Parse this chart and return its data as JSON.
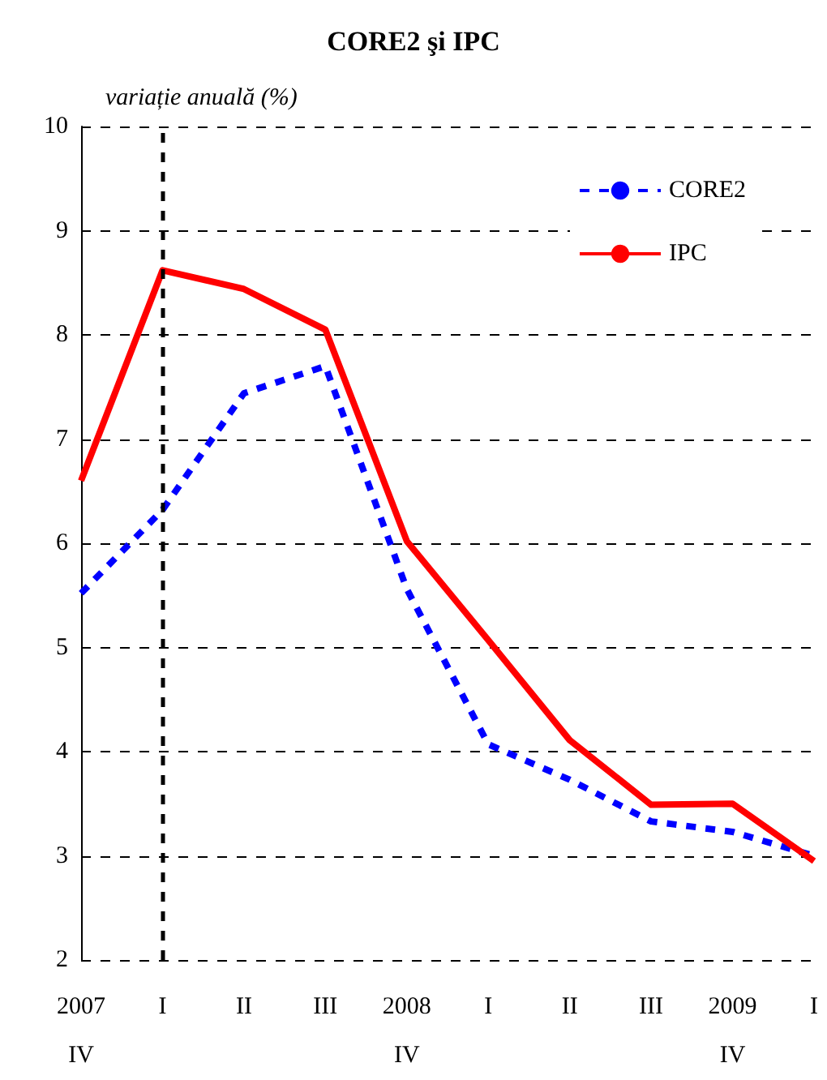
{
  "chart_data": {
    "type": "line",
    "title": "CORE2 şi IPC",
    "ylabel": "variație anuală (%)",
    "categories": [
      "2007\nIV",
      "I",
      "II",
      "III",
      "2008\nIV",
      "I",
      "II",
      "III",
      "2009\nIV",
      "I"
    ],
    "series": [
      {
        "name": "CORE2",
        "color": "#0000ff",
        "line_style": "dashed",
        "values": [
          5.52,
          6.32,
          7.44,
          7.7,
          5.56,
          4.07,
          3.73,
          3.33,
          3.23,
          3.0
        ]
      },
      {
        "name": "IPC",
        "color": "#ff0000",
        "line_style": "solid",
        "values": [
          6.6,
          8.62,
          8.44,
          8.05,
          6.02,
          5.07,
          4.11,
          3.49,
          3.5,
          2.95
        ]
      }
    ],
    "ylim": [
      2,
      10
    ],
    "yticks": [
      2,
      3,
      4,
      5,
      6,
      7,
      8,
      9,
      10
    ],
    "grid": "y",
    "legend": "top right",
    "marker": "none",
    "ref_lines": [
      {
        "axis": "x",
        "value": "I",
        "color": "#000000",
        "line_style": "dashed"
      }
    ]
  }
}
